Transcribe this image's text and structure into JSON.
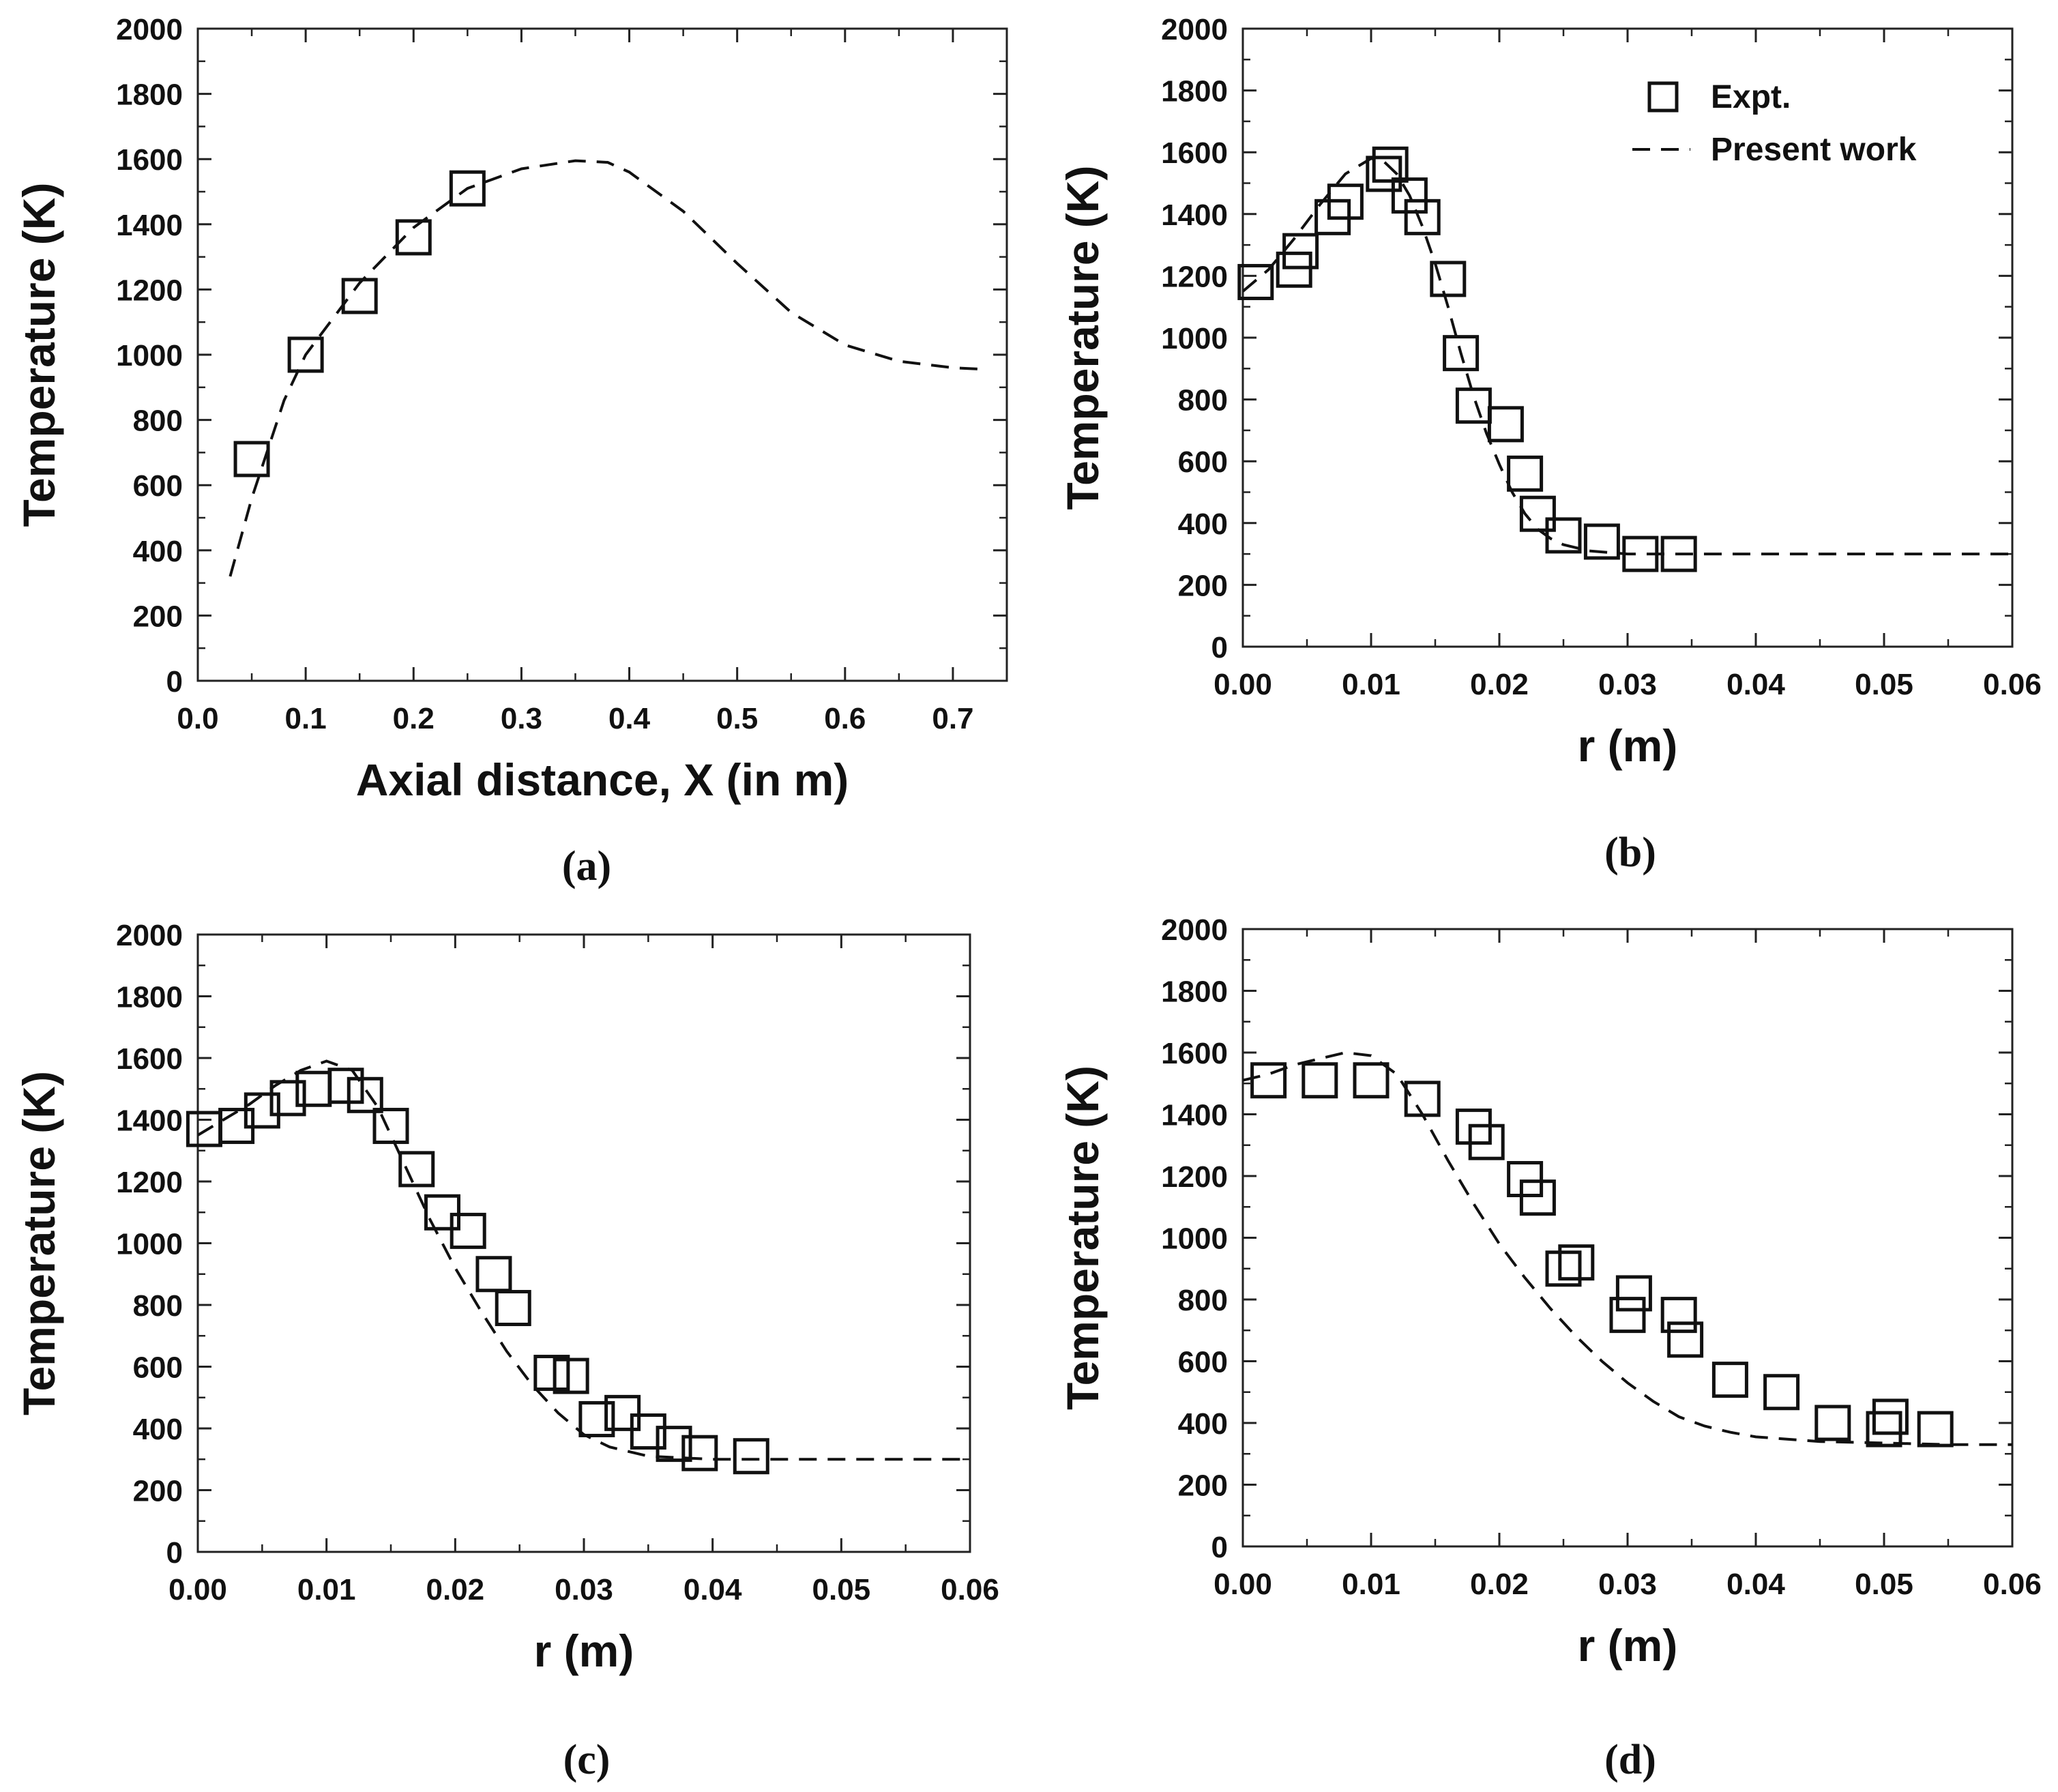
{
  "chart_data": [
    {
      "panel": "(a)",
      "type": "scatter",
      "xlabel": "Axial distance, X (in m)",
      "ylabel": "Temperature (K)",
      "xlim": [
        0.0,
        0.75
      ],
      "ylim": [
        0,
        2000
      ],
      "xticks": [
        "0.0",
        "0.1",
        "0.2",
        "0.3",
        "0.4",
        "0.5",
        "0.6",
        "0.7"
      ],
      "yticks": [
        "0",
        "200",
        "400",
        "600",
        "800",
        "1000",
        "1200",
        "1400",
        "1600",
        "1800",
        "2000"
      ],
      "series": [
        {
          "name": "Expt.",
          "style": "open-square",
          "x": [
            0.05,
            0.1,
            0.15,
            0.2,
            0.25
          ],
          "y": [
            680,
            1000,
            1180,
            1360,
            1510
          ]
        },
        {
          "name": "Present work",
          "style": "dashed-line",
          "x": [
            0.03,
            0.05,
            0.08,
            0.1,
            0.15,
            0.2,
            0.25,
            0.3,
            0.35,
            0.38,
            0.4,
            0.45,
            0.5,
            0.55,
            0.6,
            0.65,
            0.7,
            0.73
          ],
          "y": [
            320,
            560,
            860,
            1000,
            1220,
            1390,
            1510,
            1570,
            1595,
            1590,
            1560,
            1440,
            1280,
            1130,
            1030,
            980,
            960,
            955
          ]
        }
      ]
    },
    {
      "panel": "(b)",
      "type": "scatter",
      "xlabel": "r (m)",
      "ylabel": "Temperature (K)",
      "xlim": [
        0.0,
        0.06
      ],
      "ylim": [
        0,
        2000
      ],
      "xticks": [
        "0.00",
        "0.01",
        "0.02",
        "0.03",
        "0.04",
        "0.05",
        "0.06"
      ],
      "yticks": [
        "0",
        "200",
        "400",
        "600",
        "800",
        "1000",
        "1200",
        "1400",
        "1600",
        "1800",
        "2000"
      ],
      "legend": {
        "placement": "top-right",
        "items": [
          "Expt.",
          "Present work"
        ]
      },
      "series": [
        {
          "name": "Expt.",
          "style": "open-square",
          "x": [
            0.001,
            0.004,
            0.0045,
            0.007,
            0.008,
            0.011,
            0.0115,
            0.013,
            0.014,
            0.016,
            0.017,
            0.018,
            0.0205,
            0.022,
            0.023,
            0.025,
            0.028,
            0.031,
            0.034
          ],
          "y": [
            1180,
            1220,
            1280,
            1390,
            1440,
            1530,
            1560,
            1460,
            1390,
            1190,
            950,
            780,
            720,
            560,
            430,
            360,
            340,
            300,
            300
          ]
        },
        {
          "name": "Present work",
          "style": "dashed-line",
          "x": [
            0.0,
            0.002,
            0.004,
            0.006,
            0.008,
            0.01,
            0.011,
            0.012,
            0.013,
            0.014,
            0.015,
            0.016,
            0.017,
            0.018,
            0.019,
            0.02,
            0.021,
            0.022,
            0.023,
            0.024,
            0.025,
            0.027,
            0.03,
            0.035,
            0.04,
            0.05,
            0.06
          ],
          "y": [
            1150,
            1220,
            1320,
            1430,
            1530,
            1580,
            1570,
            1530,
            1460,
            1360,
            1240,
            1100,
            950,
            810,
            690,
            590,
            500,
            430,
            380,
            350,
            330,
            310,
            300,
            300,
            300,
            300,
            300
          ]
        }
      ]
    },
    {
      "panel": "(c)",
      "type": "scatter",
      "xlabel": "r (m)",
      "ylabel": "Temperature (K)",
      "xlim": [
        0.0,
        0.06
      ],
      "ylim": [
        0,
        2000
      ],
      "xticks": [
        "0.00",
        "0.01",
        "0.02",
        "0.03",
        "0.04",
        "0.05",
        "0.06"
      ],
      "yticks": [
        "0",
        "200",
        "400",
        "600",
        "800",
        "1000",
        "1200",
        "1400",
        "1600",
        "1800",
        "2000"
      ],
      "series": [
        {
          "name": "Expt.",
          "style": "open-square",
          "x": [
            0.0005,
            0.003,
            0.005,
            0.007,
            0.009,
            0.0115,
            0.013,
            0.015,
            0.017,
            0.019,
            0.021,
            0.023,
            0.0245,
            0.0275,
            0.029,
            0.031,
            0.033,
            0.035,
            0.037,
            0.039,
            0.043
          ],
          "y": [
            1370,
            1380,
            1430,
            1470,
            1500,
            1510,
            1480,
            1380,
            1240,
            1100,
            1040,
            900,
            790,
            580,
            570,
            430,
            450,
            390,
            350,
            320,
            310
          ]
        },
        {
          "name": "Present work",
          "style": "dashed-line",
          "x": [
            0.0,
            0.002,
            0.004,
            0.006,
            0.008,
            0.01,
            0.012,
            0.014,
            0.016,
            0.018,
            0.02,
            0.022,
            0.024,
            0.026,
            0.028,
            0.03,
            0.032,
            0.035,
            0.04,
            0.05,
            0.06
          ],
          "y": [
            1350,
            1400,
            1450,
            1510,
            1560,
            1590,
            1560,
            1440,
            1260,
            1080,
            920,
            780,
            650,
            540,
            450,
            380,
            340,
            310,
            300,
            300,
            300
          ]
        }
      ]
    },
    {
      "panel": "(d)",
      "type": "scatter",
      "xlabel": "r (m)",
      "ylabel": "Temperature (K)",
      "xlim": [
        0.0,
        0.06
      ],
      "ylim": [
        0,
        2000
      ],
      "xticks": [
        "0.00",
        "0.01",
        "0.02",
        "0.03",
        "0.04",
        "0.05",
        "0.06"
      ],
      "yticks": [
        "0",
        "200",
        "400",
        "600",
        "800",
        "1000",
        "1200",
        "1400",
        "1600",
        "1800",
        "2000"
      ],
      "series": [
        {
          "name": "Expt.",
          "style": "open-square",
          "x": [
            0.002,
            0.006,
            0.01,
            0.014,
            0.018,
            0.019,
            0.022,
            0.023,
            0.025,
            0.026,
            0.03,
            0.0305,
            0.034,
            0.0345,
            0.038,
            0.042,
            0.046,
            0.05,
            0.0505,
            0.054
          ],
          "y": [
            1510,
            1510,
            1510,
            1450,
            1360,
            1310,
            1190,
            1130,
            900,
            920,
            750,
            820,
            750,
            670,
            540,
            500,
            400,
            380,
            420,
            380
          ]
        },
        {
          "name": "Present work",
          "style": "dashed-line",
          "x": [
            0.0,
            0.002,
            0.004,
            0.006,
            0.008,
            0.01,
            0.012,
            0.014,
            0.016,
            0.018,
            0.02,
            0.022,
            0.024,
            0.026,
            0.028,
            0.03,
            0.032,
            0.034,
            0.036,
            0.038,
            0.04,
            0.045,
            0.05,
            0.055,
            0.06
          ],
          "y": [
            1510,
            1530,
            1560,
            1580,
            1600,
            1590,
            1530,
            1400,
            1250,
            1110,
            980,
            870,
            770,
            680,
            600,
            530,
            470,
            420,
            390,
            370,
            355,
            340,
            335,
            330,
            330
          ]
        }
      ]
    }
  ],
  "legend": {
    "expt_label": "Expt.",
    "model_label": "Present work"
  }
}
